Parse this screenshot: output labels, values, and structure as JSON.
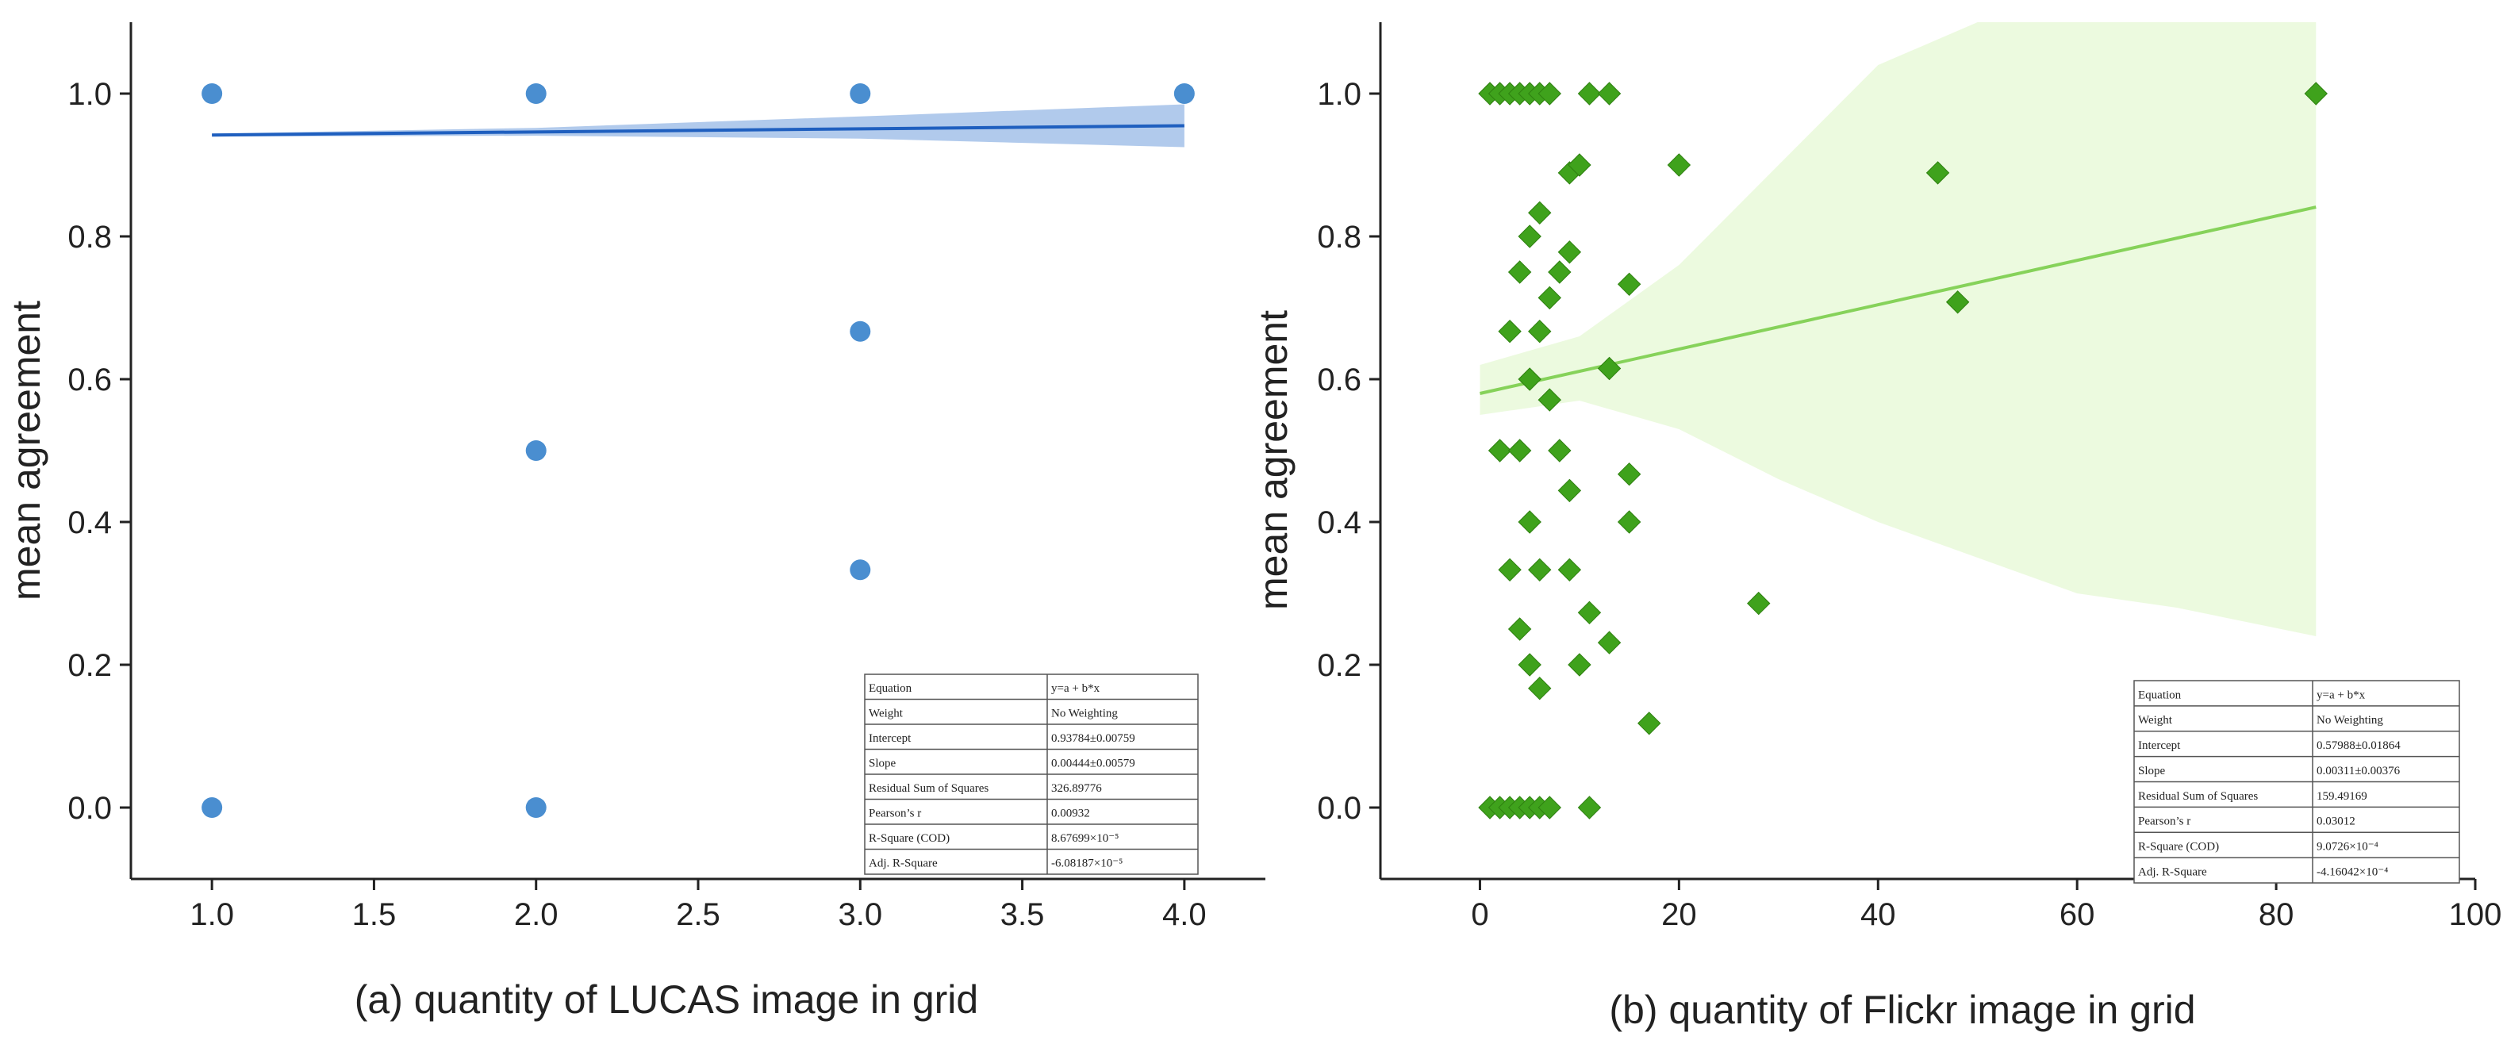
{
  "chart_data": [
    {
      "type": "scatter",
      "panel": "a",
      "xlabel": "(a) quantity of LUCAS image in grid",
      "ylabel": "mean agreement",
      "xlim": [
        0.75,
        4.25
      ],
      "ylim": [
        -0.1,
        1.1
      ],
      "xticks": [
        1.0,
        1.5,
        2.0,
        2.5,
        3.0,
        3.5,
        4.0
      ],
      "xtick_labels": [
        "1.0",
        "1.5",
        "2.0",
        "2.5",
        "3.0",
        "3.5",
        "4.0"
      ],
      "yticks": [
        0.0,
        0.2,
        0.4,
        0.6,
        0.8,
        1.0
      ],
      "ytick_labels": [
        "0.0",
        "0.2",
        "0.4",
        "0.6",
        "0.8",
        "1.0"
      ],
      "marker": "circle",
      "color": "#4a8ed0",
      "line_color": "#1f5fbf",
      "band_color": "#a9c4ea",
      "points": [
        {
          "x": 1,
          "y": 1.0
        },
        {
          "x": 2,
          "y": 1.0
        },
        {
          "x": 3,
          "y": 1.0
        },
        {
          "x": 4,
          "y": 1.0
        },
        {
          "x": 3,
          "y": 0.667
        },
        {
          "x": 2,
          "y": 0.5
        },
        {
          "x": 3,
          "y": 0.333
        },
        {
          "x": 1,
          "y": 0.0
        },
        {
          "x": 2,
          "y": 0.0
        }
      ],
      "fit": {
        "x0": 1.0,
        "x1": 4.0,
        "y0": 0.942,
        "y1": 0.955
      },
      "band": {
        "x": [
          1.0,
          2.0,
          3.0,
          4.0
        ],
        "lower": [
          0.94,
          0.941,
          0.937,
          0.925
        ],
        "upper": [
          0.944,
          0.952,
          0.968,
          0.985
        ]
      },
      "table": [
        [
          "Equation",
          "y=a + b*x"
        ],
        [
          "Weight",
          "No Weighting"
        ],
        [
          "Intercept",
          "0.93784±0.00759"
        ],
        [
          "Slope",
          "0.00444±0.00579"
        ],
        [
          "Residual Sum of Squares",
          "326.89776"
        ],
        [
          "Pearson’s r",
          "0.00932"
        ],
        [
          "R-Square (COD)",
          "8.67699×10⁻⁵"
        ],
        [
          "Adj. R-Square",
          "-6.08187×10⁻⁵"
        ]
      ]
    },
    {
      "type": "scatter",
      "panel": "b",
      "xlabel": "(b) quantity of Flickr image in grid",
      "ylabel": "mean agreement",
      "xlim": [
        -10,
        100
      ],
      "ylim": [
        -0.1,
        1.1
      ],
      "xticks": [
        0,
        20,
        40,
        60,
        80,
        100
      ],
      "xtick_labels": [
        "0",
        "20",
        "40",
        "60",
        "80",
        "100"
      ],
      "yticks": [
        0.0,
        0.2,
        0.4,
        0.6,
        0.8,
        1.0
      ],
      "ytick_labels": [
        "0.0",
        "0.2",
        "0.4",
        "0.6",
        "0.8",
        "1.0"
      ],
      "marker": "diamond",
      "color": "#3fa21c",
      "line_color": "#86d25a",
      "band_color": "#eaf9dc",
      "points": [
        {
          "x": 1,
          "y": 1.0
        },
        {
          "x": 2,
          "y": 1.0
        },
        {
          "x": 3,
          "y": 1.0
        },
        {
          "x": 4,
          "y": 1.0
        },
        {
          "x": 5,
          "y": 1.0
        },
        {
          "x": 6,
          "y": 1.0
        },
        {
          "x": 7,
          "y": 1.0
        },
        {
          "x": 11,
          "y": 1.0
        },
        {
          "x": 13,
          "y": 1.0
        },
        {
          "x": 84,
          "y": 1.0
        },
        {
          "x": 9,
          "y": 0.889
        },
        {
          "x": 10,
          "y": 0.9
        },
        {
          "x": 20,
          "y": 0.9
        },
        {
          "x": 46,
          "y": 0.889
        },
        {
          "x": 6,
          "y": 0.833
        },
        {
          "x": 5,
          "y": 0.8
        },
        {
          "x": 9,
          "y": 0.778
        },
        {
          "x": 4,
          "y": 0.75
        },
        {
          "x": 8,
          "y": 0.75
        },
        {
          "x": 15,
          "y": 0.733
        },
        {
          "x": 7,
          "y": 0.714
        },
        {
          "x": 48,
          "y": 0.708
        },
        {
          "x": 3,
          "y": 0.667
        },
        {
          "x": 6,
          "y": 0.667
        },
        {
          "x": 13,
          "y": 0.615
        },
        {
          "x": 5,
          "y": 0.6
        },
        {
          "x": 7,
          "y": 0.571
        },
        {
          "x": 2,
          "y": 0.5
        },
        {
          "x": 4,
          "y": 0.5
        },
        {
          "x": 8,
          "y": 0.5
        },
        {
          "x": 15,
          "y": 0.467
        },
        {
          "x": 9,
          "y": 0.444
        },
        {
          "x": 5,
          "y": 0.4
        },
        {
          "x": 15,
          "y": 0.4
        },
        {
          "x": 3,
          "y": 0.333
        },
        {
          "x": 6,
          "y": 0.333
        },
        {
          "x": 9,
          "y": 0.333
        },
        {
          "x": 28,
          "y": 0.286
        },
        {
          "x": 11,
          "y": 0.273
        },
        {
          "x": 4,
          "y": 0.25
        },
        {
          "x": 13,
          "y": 0.231
        },
        {
          "x": 5,
          "y": 0.2
        },
        {
          "x": 10,
          "y": 0.2
        },
        {
          "x": 6,
          "y": 0.167
        },
        {
          "x": 17,
          "y": 0.118
        },
        {
          "x": 1,
          "y": 0.0
        },
        {
          "x": 2,
          "y": 0.0
        },
        {
          "x": 3,
          "y": 0.0
        },
        {
          "x": 4,
          "y": 0.0
        },
        {
          "x": 5,
          "y": 0.0
        },
        {
          "x": 6,
          "y": 0.0
        },
        {
          "x": 7,
          "y": 0.0
        },
        {
          "x": 11,
          "y": 0.0
        }
      ],
      "fit": {
        "x0": 0,
        "x1": 84,
        "y0": 0.58,
        "y1": 0.841
      },
      "band": {
        "x": [
          0,
          10,
          20,
          30,
          40,
          50,
          60,
          70,
          84
        ],
        "lower": [
          0.55,
          0.57,
          0.53,
          0.46,
          0.4,
          0.35,
          0.3,
          0.28,
          0.24
        ],
        "upper": [
          0.62,
          0.66,
          0.76,
          0.9,
          1.04,
          1.1,
          1.1,
          1.1,
          1.1
        ]
      },
      "table": [
        [
          "Equation",
          "y=a + b*x"
        ],
        [
          "Weight",
          "No Weighting"
        ],
        [
          "Intercept",
          "0.57988±0.01864"
        ],
        [
          "Slope",
          "0.00311±0.00376"
        ],
        [
          "Residual Sum of Squares",
          "159.49169"
        ],
        [
          "Pearson’s r",
          "0.03012"
        ],
        [
          "R-Square (COD)",
          "9.0726×10⁻⁴"
        ],
        [
          "Adj. R-Square",
          "-4.16042×10⁻⁴"
        ]
      ]
    }
  ]
}
